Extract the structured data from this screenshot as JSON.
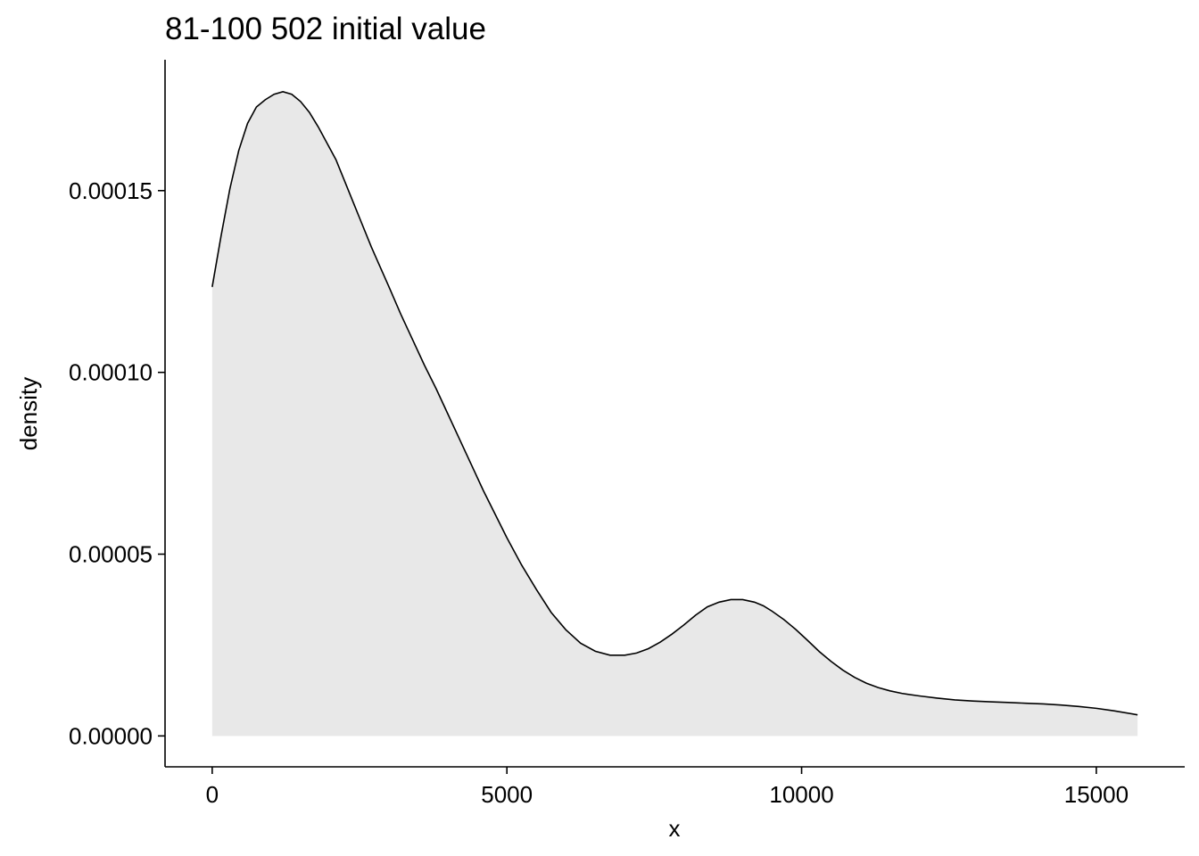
{
  "chart_data": {
    "type": "area",
    "title": "81-100 502 initial value",
    "xlabel": "x",
    "ylabel": "density",
    "xlim": [
      -800,
      16500
    ],
    "ylim": [
      -8.5e-06,
      0.000186
    ],
    "x_ticks": [
      0,
      5000,
      10000,
      15000
    ],
    "x_tick_labels": [
      "0",
      "5000",
      "10000",
      "15000"
    ],
    "y_ticks": [
      0,
      5e-05,
      0.0001,
      0.00015
    ],
    "y_tick_labels": [
      "0.00000",
      "0.00005",
      "0.00010",
      "0.00015"
    ],
    "grid": false,
    "legend": "none",
    "fill_color": "#e8e8e8",
    "line_color": "#000000",
    "series": [
      {
        "name": "density",
        "x": [
          0,
          150,
          300,
          450,
          600,
          750,
          900,
          1050,
          1200,
          1350,
          1500,
          1650,
          1800,
          1950,
          2100,
          2250,
          2400,
          2550,
          2700,
          2850,
          3000,
          3200,
          3400,
          3600,
          3800,
          4000,
          4200,
          4400,
          4600,
          4800,
          5000,
          5250,
          5500,
          5750,
          6000,
          6250,
          6500,
          6750,
          7000,
          7200,
          7400,
          7600,
          7800,
          8000,
          8200,
          8400,
          8600,
          8800,
          9000,
          9200,
          9350,
          9500,
          9700,
          9900,
          10100,
          10300,
          10500,
          10700,
          10900,
          11100,
          11300,
          11500,
          11700,
          12000,
          12300,
          12600,
          12900,
          13200,
          13500,
          13800,
          14100,
          14400,
          14700,
          15000,
          15300,
          15700
        ],
        "y": [
          0.0001235,
          0.0001375,
          0.0001505,
          0.000161,
          0.0001685,
          0.000173,
          0.000175,
          0.0001765,
          0.0001772,
          0.0001765,
          0.0001745,
          0.0001715,
          0.0001675,
          0.000163,
          0.0001585,
          0.0001525,
          0.0001465,
          0.0001405,
          0.0001345,
          0.000129,
          0.0001235,
          0.000116,
          0.000109,
          0.000102,
          9.55e-05,
          8.85e-05,
          8.15e-05,
          7.45e-05,
          6.75e-05,
          6.1e-05,
          5.45e-05,
          4.7e-05,
          4.03e-05,
          3.4e-05,
          2.92e-05,
          2.55e-05,
          2.33e-05,
          2.22e-05,
          2.22e-05,
          2.28e-05,
          2.4e-05,
          2.58e-05,
          2.8e-05,
          3.05e-05,
          3.32e-05,
          3.55e-05,
          3.68e-05,
          3.75e-05,
          3.75e-05,
          3.68e-05,
          3.58e-05,
          3.43e-05,
          3.2e-05,
          2.93e-05,
          2.63e-05,
          2.32e-05,
          2.05e-05,
          1.81e-05,
          1.61e-05,
          1.45e-05,
          1.33e-05,
          1.24e-05,
          1.17e-05,
          1.1e-05,
          1.04e-05,
          9.9e-06,
          9.6e-06,
          9.4e-06,
          9.2e-06,
          9e-06,
          8.8e-06,
          8.5e-06,
          8.1e-06,
          7.6e-06,
          6.9e-06,
          5.8e-06
        ]
      }
    ]
  }
}
